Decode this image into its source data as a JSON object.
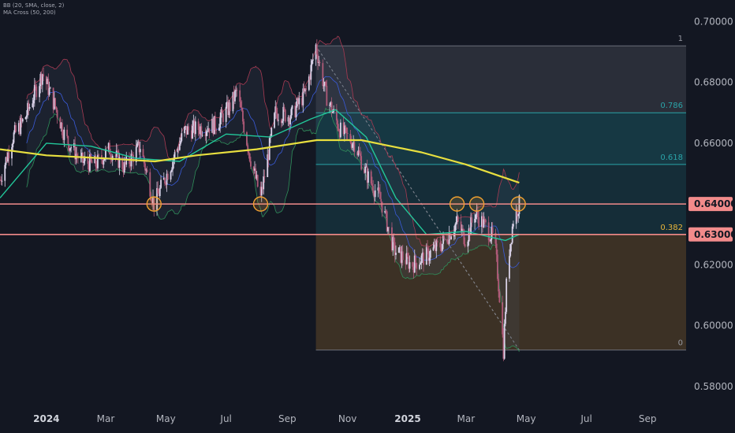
{
  "indicator_legend": {
    "bb": "BB (20, SMA, close, 2)",
    "ma_cross": "MA Cross (50, 200)"
  },
  "colors": {
    "background": "#131722",
    "candle_up": "#d9d2e8",
    "candle_down": "#b05a78",
    "bb_band": "#a83a52",
    "bb_basis": "#3a5bd9",
    "ma50": "#22c79a",
    "ma200": "#e8df3f",
    "level_line": "#f28b8b",
    "fib_line": "#2aa3a8",
    "circle": "#f0a030",
    "fib_382_label": "#e8b53a",
    "fib_upper_fill": "#c8ccd6",
    "fib_mid_fill": "#1f7f8a",
    "fib_low_fill": "#7a5a2a"
  },
  "chart_data": {
    "type": "candlestick",
    "instrument_note": "",
    "x_domain": [
      "2023-11-15",
      "2025-10-10"
    ],
    "ylim": [
      0.573,
      0.705
    ],
    "y_ticks": [
      "0.58000",
      "0.60000",
      "0.62000",
      "0.66000",
      "0.68000",
      "0.70000"
    ],
    "y_tick_values": [
      0.58,
      0.6,
      0.62,
      0.66,
      0.68,
      0.7
    ],
    "x_ticks": [
      {
        "date": "2024-01-01",
        "label": "2024",
        "year": true
      },
      {
        "date": "2024-03-01",
        "label": "Mar"
      },
      {
        "date": "2024-05-01",
        "label": "May"
      },
      {
        "date": "2024-07-01",
        "label": "Jul"
      },
      {
        "date": "2024-09-01",
        "label": "Sep"
      },
      {
        "date": "2024-11-01",
        "label": "Nov"
      },
      {
        "date": "2025-01-01",
        "label": "2025",
        "year": true
      },
      {
        "date": "2025-03-01",
        "label": "Mar"
      },
      {
        "date": "2025-05-01",
        "label": "May"
      },
      {
        "date": "2025-07-01",
        "label": "Jul"
      },
      {
        "date": "2025-09-01",
        "label": "Sep"
      }
    ],
    "price_path": [
      [
        "2023-11-15",
        0.648
      ],
      [
        "2023-11-28",
        0.662
      ],
      [
        "2023-12-10",
        0.668
      ],
      [
        "2023-12-28",
        0.683
      ],
      [
        "2024-01-10",
        0.672
      ],
      [
        "2024-01-20",
        0.662
      ],
      [
        "2024-02-05",
        0.654
      ],
      [
        "2024-02-20",
        0.653
      ],
      [
        "2024-03-05",
        0.658
      ],
      [
        "2024-03-20",
        0.652
      ],
      [
        "2024-04-05",
        0.659
      ],
      [
        "2024-04-19",
        0.64
      ],
      [
        "2024-05-05",
        0.652
      ],
      [
        "2024-05-20",
        0.664
      ],
      [
        "2024-06-05",
        0.665
      ],
      [
        "2024-06-20",
        0.666
      ],
      [
        "2024-07-05",
        0.672
      ],
      [
        "2024-07-12",
        0.677
      ],
      [
        "2024-07-25",
        0.656
      ],
      [
        "2024-08-05",
        0.642
      ],
      [
        "2024-08-20",
        0.67
      ],
      [
        "2024-09-05",
        0.669
      ],
      [
        "2024-09-20",
        0.677
      ],
      [
        "2024-09-30",
        0.692
      ],
      [
        "2024-10-10",
        0.676
      ],
      [
        "2024-10-25",
        0.664
      ],
      [
        "2024-11-08",
        0.66
      ],
      [
        "2024-11-20",
        0.65
      ],
      [
        "2024-12-05",
        0.641
      ],
      [
        "2024-12-18",
        0.625
      ],
      [
        "2025-01-05",
        0.62
      ],
      [
        "2025-01-20",
        0.623
      ],
      [
        "2025-02-05",
        0.627
      ],
      [
        "2025-02-20",
        0.634
      ],
      [
        "2025-03-01",
        0.628
      ],
      [
        "2025-03-10",
        0.637
      ],
      [
        "2025-03-20",
        0.633
      ],
      [
        "2025-03-30",
        0.628
      ],
      [
        "2025-04-04",
        0.61
      ],
      [
        "2025-04-08",
        0.592
      ],
      [
        "2025-04-12",
        0.62
      ],
      [
        "2025-04-18",
        0.635
      ],
      [
        "2025-04-24",
        0.64
      ]
    ],
    "ma200_path": [
      [
        "2023-11-15",
        0.658
      ],
      [
        "2024-01-01",
        0.656
      ],
      [
        "2024-03-01",
        0.655
      ],
      [
        "2024-04-20",
        0.654
      ],
      [
        "2024-06-01",
        0.656
      ],
      [
        "2024-08-01",
        0.658
      ],
      [
        "2024-10-01",
        0.661
      ],
      [
        "2024-11-15",
        0.661
      ],
      [
        "2024-12-15",
        0.659
      ],
      [
        "2025-01-15",
        0.657
      ],
      [
        "2025-03-01",
        0.653
      ],
      [
        "2025-04-24",
        0.647
      ]
    ],
    "ma50_path": [
      [
        "2023-11-15",
        0.642
      ],
      [
        "2024-01-01",
        0.66
      ],
      [
        "2024-02-15",
        0.659
      ],
      [
        "2024-04-01",
        0.655
      ],
      [
        "2024-05-15",
        0.654
      ],
      [
        "2024-07-01",
        0.663
      ],
      [
        "2024-08-15",
        0.662
      ],
      [
        "2024-09-25",
        0.668
      ],
      [
        "2024-10-20",
        0.671
      ],
      [
        "2024-11-20",
        0.662
      ],
      [
        "2024-12-20",
        0.642
      ],
      [
        "2025-01-20",
        0.63
      ],
      [
        "2025-03-01",
        0.631
      ],
      [
        "2025-04-10",
        0.628
      ],
      [
        "2025-04-24",
        0.63
      ]
    ],
    "horizontal_levels": [
      {
        "value": 0.64,
        "label": "0.64000"
      },
      {
        "value": 0.63,
        "label": "0.63000"
      }
    ],
    "fib_retracement": {
      "start_date": "2024-09-30",
      "end_date": "2025-04-24",
      "high": 0.692,
      "low": 0.592,
      "levels": [
        {
          "ratio": "1",
          "value": 0.692
        },
        {
          "ratio": "0.786",
          "value": 0.67
        },
        {
          "ratio": "0.618",
          "value": 0.653
        },
        {
          "ratio": "0.382",
          "value": 0.63
        },
        {
          "ratio": "0",
          "value": 0.592
        }
      ]
    },
    "highlight_circles": [
      {
        "date": "2024-04-19",
        "value": 0.64
      },
      {
        "date": "2024-08-05",
        "value": 0.64
      },
      {
        "date": "2025-02-20",
        "value": 0.64
      },
      {
        "date": "2025-03-12",
        "value": 0.64
      },
      {
        "date": "2025-04-23",
        "value": 0.64
      }
    ],
    "grid": false,
    "legend_position": "top-left"
  }
}
